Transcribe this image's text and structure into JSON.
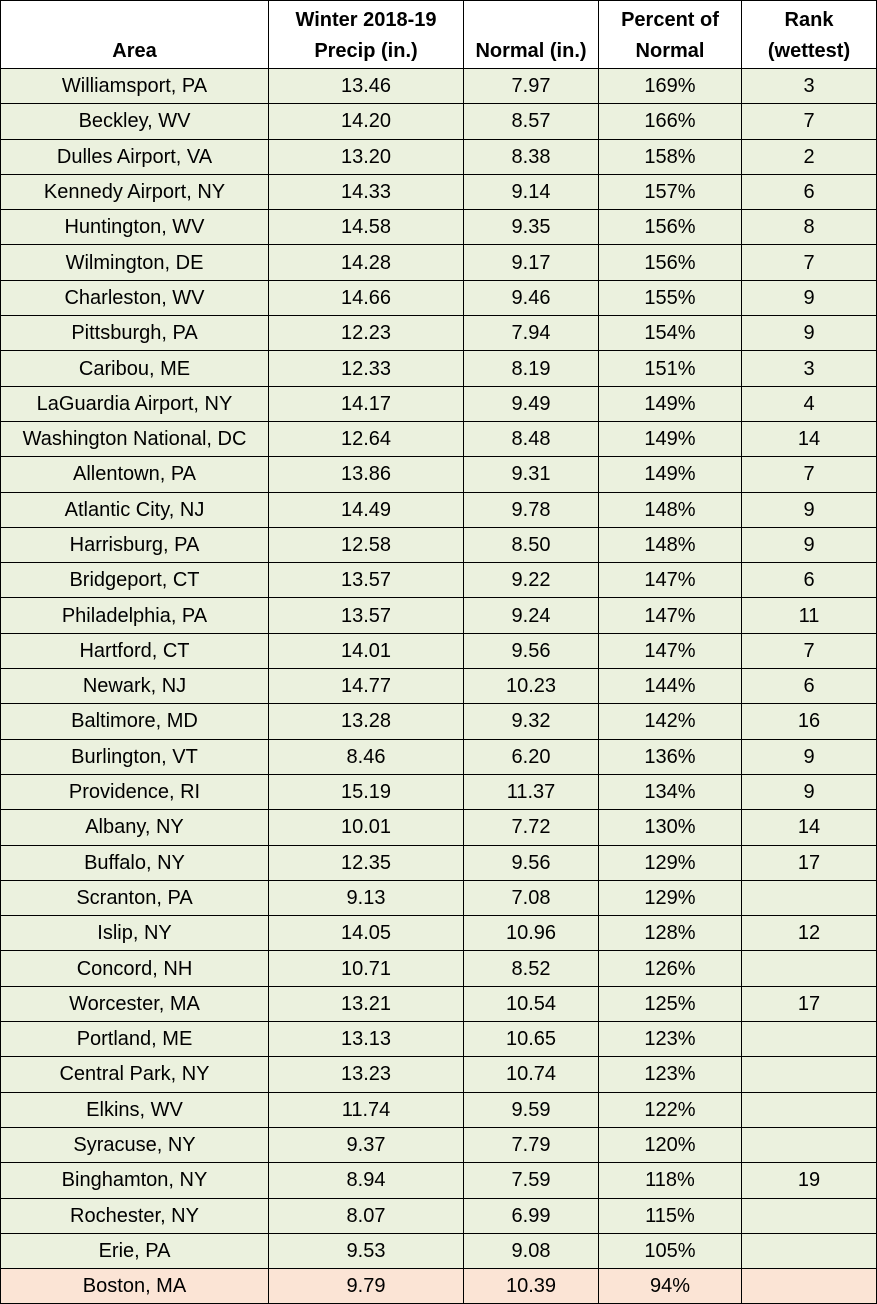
{
  "table": {
    "header": [
      [
        "Area"
      ],
      [
        "Winter 2018-19",
        "Precip (in.)"
      ],
      [
        "Normal (in.)"
      ],
      [
        "Percent of",
        "Normal"
      ],
      [
        "Rank",
        "(wettest)"
      ]
    ],
    "rows": [
      [
        "Williamsport, PA",
        "13.46",
        "7.97",
        "169%",
        "3"
      ],
      [
        "Beckley, WV",
        "14.20",
        "8.57",
        "166%",
        "7"
      ],
      [
        "Dulles Airport, VA",
        "13.20",
        "8.38",
        "158%",
        "2"
      ],
      [
        "Kennedy Airport, NY",
        "14.33",
        "9.14",
        "157%",
        "6"
      ],
      [
        "Huntington, WV",
        "14.58",
        "9.35",
        "156%",
        "8"
      ],
      [
        "Wilmington, DE",
        "14.28",
        "9.17",
        "156%",
        "7"
      ],
      [
        "Charleston, WV",
        "14.66",
        "9.46",
        "155%",
        "9"
      ],
      [
        "Pittsburgh, PA",
        "12.23",
        "7.94",
        "154%",
        "9"
      ],
      [
        "Caribou, ME",
        "12.33",
        "8.19",
        "151%",
        "3"
      ],
      [
        "LaGuardia Airport, NY",
        "14.17",
        "9.49",
        "149%",
        "4"
      ],
      [
        "Washington National, DC",
        "12.64",
        "8.48",
        "149%",
        "14"
      ],
      [
        "Allentown, PA",
        "13.86",
        "9.31",
        "149%",
        "7"
      ],
      [
        "Atlantic City, NJ",
        "14.49",
        "9.78",
        "148%",
        "9"
      ],
      [
        "Harrisburg, PA",
        "12.58",
        "8.50",
        "148%",
        "9"
      ],
      [
        "Bridgeport, CT",
        "13.57",
        "9.22",
        "147%",
        "6"
      ],
      [
        "Philadelphia, PA",
        "13.57",
        "9.24",
        "147%",
        "11"
      ],
      [
        "Hartford, CT",
        "14.01",
        "9.56",
        "147%",
        "7"
      ],
      [
        "Newark, NJ",
        "14.77",
        "10.23",
        "144%",
        "6"
      ],
      [
        "Baltimore, MD",
        "13.28",
        "9.32",
        "142%",
        "16"
      ],
      [
        "Burlington, VT",
        "8.46",
        "6.20",
        "136%",
        "9"
      ],
      [
        "Providence, RI",
        "15.19",
        "11.37",
        "134%",
        "9"
      ],
      [
        "Albany, NY",
        "10.01",
        "7.72",
        "130%",
        "14"
      ],
      [
        "Buffalo, NY",
        "12.35",
        "9.56",
        "129%",
        "17"
      ],
      [
        "Scranton, PA",
        "9.13",
        "7.08",
        "129%",
        null
      ],
      [
        "Islip, NY",
        "14.05",
        "10.96",
        "128%",
        "12"
      ],
      [
        "Concord, NH",
        "10.71",
        "8.52",
        "126%",
        null
      ],
      [
        "Worcester, MA",
        "13.21",
        "10.54",
        "125%",
        "17"
      ],
      [
        "Portland, ME",
        "13.13",
        "10.65",
        "123%",
        null
      ],
      [
        "Central Park, NY",
        "13.23",
        "10.74",
        "123%",
        null
      ],
      [
        "Elkins, WV",
        "11.74",
        "9.59",
        "122%",
        null
      ],
      [
        "Syracuse, NY",
        "9.37",
        "7.79",
        "120%",
        null
      ],
      [
        "Binghamton, NY",
        "8.94",
        "7.59",
        "118%",
        "19"
      ],
      [
        "Rochester, NY",
        "8.07",
        "6.99",
        "115%",
        null
      ],
      [
        "Erie, PA",
        "9.53",
        "9.08",
        "105%",
        null
      ],
      [
        "Boston, MA",
        "9.79",
        "10.39",
        "94%",
        null
      ]
    ]
  }
}
